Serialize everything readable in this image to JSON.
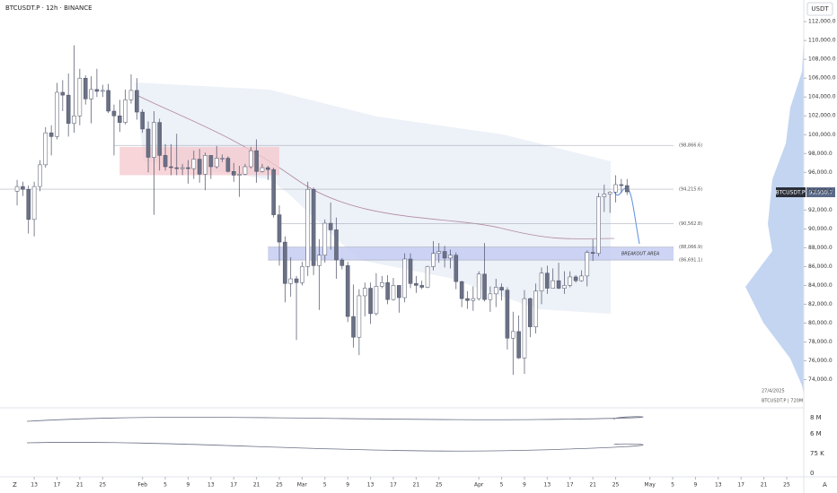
{
  "header": {
    "symbol_line": "BTCUSDT.P · 12h · BINANCE",
    "currency": "USDT",
    "date_stamp": "27/4/2025",
    "symbol_tag": "BTCUSDT.P | 720M",
    "price_tag_symbol": "BTCUSDT.P",
    "price_tag_value": "93,930.7",
    "left_corner": "Z",
    "right_corner": "A"
  },
  "indicator_labels": [
    "8 M",
    "6 M",
    "75 K",
    "0"
  ],
  "chart_data": {
    "type": "candlestick",
    "annotation": "BREAKOUT AREA",
    "up_color": "#ffffff",
    "down_color": "#6b7185",
    "edge_color": "#4b5066",
    "ylim": [
      71000,
      114300
    ],
    "xlim": [
      "2025-01-07",
      "2025-05-28"
    ],
    "yticks": [
      {
        "value": 74000,
        "label": "74,000.0"
      },
      {
        "value": 76000,
        "label": "76,000.0"
      },
      {
        "value": 78000,
        "label": "78,000.0"
      },
      {
        "value": 80000,
        "label": "80,000.0"
      },
      {
        "value": 82000,
        "label": "82,000.0"
      },
      {
        "value": 84000,
        "label": "84,000.0"
      },
      {
        "value": 86000,
        "label": "86,000.0"
      },
      {
        "value": 88000,
        "label": "88,000.0"
      },
      {
        "value": 90000,
        "label": "90,000.0"
      },
      {
        "value": 92000,
        "label": "92,000.0"
      },
      {
        "value": 94000,
        "label": "94,000.0"
      },
      {
        "value": 96000,
        "label": "96,000.0"
      },
      {
        "value": 98000,
        "label": "98,000.0"
      },
      {
        "value": 100000,
        "label": "100,000.0"
      },
      {
        "value": 102000,
        "label": "102,000.0"
      },
      {
        "value": 104000,
        "label": "104,000.0"
      },
      {
        "value": 106000,
        "label": "106,000.0"
      },
      {
        "value": 108000,
        "label": "108,000.0"
      },
      {
        "value": 110000,
        "label": "110,000.0"
      },
      {
        "value": 112000,
        "label": "112,000.0"
      }
    ],
    "xticks": [
      {
        "value": "2025-01-13",
        "label": "13"
      },
      {
        "value": "2025-01-17",
        "label": "17"
      },
      {
        "value": "2025-01-21",
        "label": "21"
      },
      {
        "value": "2025-01-25",
        "label": "25"
      },
      {
        "value": "2025-02-01",
        "label": "Feb"
      },
      {
        "value": "2025-02-05",
        "label": "5"
      },
      {
        "value": "2025-02-09",
        "label": "9"
      },
      {
        "value": "2025-02-13",
        "label": "13"
      },
      {
        "value": "2025-02-17",
        "label": "17"
      },
      {
        "value": "2025-02-21",
        "label": "21"
      },
      {
        "value": "2025-02-25",
        "label": "25"
      },
      {
        "value": "2025-03-01",
        "label": "Mar"
      },
      {
        "value": "2025-03-05",
        "label": "5"
      },
      {
        "value": "2025-03-09",
        "label": "9"
      },
      {
        "value": "2025-03-13",
        "label": "13"
      },
      {
        "value": "2025-03-17",
        "label": "17"
      },
      {
        "value": "2025-03-21",
        "label": "21"
      },
      {
        "value": "2025-03-25",
        "label": "25"
      },
      {
        "value": "2025-04-01",
        "label": "Apr"
      },
      {
        "value": "2025-04-05",
        "label": "5"
      },
      {
        "value": "2025-04-09",
        "label": "9"
      },
      {
        "value": "2025-04-13",
        "label": "13"
      },
      {
        "value": "2025-04-17",
        "label": "17"
      },
      {
        "value": "2025-04-21",
        "label": "21"
      },
      {
        "value": "2025-04-25",
        "label": "25"
      },
      {
        "value": "2025-05-01",
        "label": "May"
      },
      {
        "value": "2025-05-05",
        "label": "5"
      },
      {
        "value": "2025-05-09",
        "label": "9"
      },
      {
        "value": "2025-05-13",
        "label": "13"
      },
      {
        "value": "2025-05-17",
        "label": "17"
      },
      {
        "value": "2025-05-21",
        "label": "21"
      },
      {
        "value": "2025-05-25",
        "label": "25"
      }
    ],
    "levels": [
      {
        "value": 98866.6,
        "label": "(98,866.6)"
      },
      {
        "value": 94215.6,
        "label": "(94,215.6)"
      },
      {
        "value": 90562.8,
        "label": "(90,562.8)"
      },
      {
        "value": 88066.9,
        "label": "(88,066.9)"
      },
      {
        "value": 86691.1,
        "label": "(86,691.1)"
      }
    ],
    "x": [
      "2025-01-10",
      "2025-01-11",
      "2025-01-12",
      "2025-01-13",
      "2025-01-14",
      "2025-01-15",
      "2025-01-16",
      "2025-01-17",
      "2025-01-18",
      "2025-01-19",
      "2025-01-20",
      "2025-01-21",
      "2025-01-22",
      "2025-01-23",
      "2025-01-24",
      "2025-01-25",
      "2025-01-26",
      "2025-01-27",
      "2025-01-28",
      "2025-01-29",
      "2025-01-30",
      "2025-01-31",
      "2025-02-01",
      "2025-02-02",
      "2025-02-03",
      "2025-02-04",
      "2025-02-05",
      "2025-02-06",
      "2025-02-07",
      "2025-02-08",
      "2025-02-09",
      "2025-02-10",
      "2025-02-11",
      "2025-02-12",
      "2025-02-13",
      "2025-02-14",
      "2025-02-15",
      "2025-02-16",
      "2025-02-17",
      "2025-02-18",
      "2025-02-19",
      "2025-02-20",
      "2025-02-21",
      "2025-02-22",
      "2025-02-23",
      "2025-02-24",
      "2025-02-25",
      "2025-02-26",
      "2025-02-27",
      "2025-02-28",
      "2025-03-01",
      "2025-03-02",
      "2025-03-03",
      "2025-03-04",
      "2025-03-05",
      "2025-03-06",
      "2025-03-07",
      "2025-03-08",
      "2025-03-09",
      "2025-03-10",
      "2025-03-11",
      "2025-03-12",
      "2025-03-13",
      "2025-03-14",
      "2025-03-15",
      "2025-03-16",
      "2025-03-17",
      "2025-03-18",
      "2025-03-19",
      "2025-03-20",
      "2025-03-21",
      "2025-03-22",
      "2025-03-23",
      "2025-03-24",
      "2025-03-25",
      "2025-03-26",
      "2025-03-27",
      "2025-03-28",
      "2025-03-29",
      "2025-03-30",
      "2025-03-31",
      "2025-04-01",
      "2025-04-02",
      "2025-04-03",
      "2025-04-04",
      "2025-04-05",
      "2025-04-06",
      "2025-04-07",
      "2025-04-08",
      "2025-04-09",
      "2025-04-10",
      "2025-04-11",
      "2025-04-12",
      "2025-04-13",
      "2025-04-14",
      "2025-04-15",
      "2025-04-16",
      "2025-04-17",
      "2025-04-18",
      "2025-04-19",
      "2025-04-20",
      "2025-04-21",
      "2025-04-22",
      "2025-04-23",
      "2025-04-24",
      "2025-04-25",
      "2025-04-26",
      "2025-04-27"
    ],
    "open": [
      94000,
      94500,
      94200,
      91000,
      94500,
      96800,
      100200,
      99800,
      104500,
      104200,
      101200,
      102000,
      106000,
      103800,
      104800,
      104600,
      104700,
      102500,
      102000,
      101300,
      103700,
      104700,
      102400,
      100600,
      97600,
      101300,
      97800,
      96600,
      96500,
      96400,
      96500,
      96400,
      97400,
      95800,
      97800,
      96600,
      97500,
      97500,
      96100,
      95700,
      95800,
      96600,
      98300,
      96100,
      96500,
      96300,
      91500,
      88600,
      84200,
      84700,
      84300,
      86000,
      94200,
      86100,
      87200,
      90600,
      89900,
      86700,
      86100,
      80700,
      78500,
      82900,
      83700,
      81000,
      83900,
      84300,
      82500,
      84000,
      82700,
      86800,
      84200,
      84000,
      83800,
      86000,
      87400,
      87600,
      86900,
      87200,
      84400,
      82600,
      82400,
      82600,
      85200,
      82500,
      83100,
      83800,
      83500,
      78400,
      79100,
      76300,
      82600,
      79600,
      83400,
      85300,
      83700,
      84500,
      83700,
      84000,
      84900,
      84500,
      85000,
      87500,
      87400,
      93400,
      93700,
      93900,
      94700,
      94600
    ],
    "high": [
      95200,
      95000,
      94600,
      95000,
      97300,
      100800,
      101000,
      105500,
      105800,
      106500,
      109500,
      107000,
      106300,
      106200,
      107000,
      105300,
      105400,
      103200,
      103700,
      104800,
      106400,
      106000,
      102700,
      101400,
      102500,
      101700,
      99000,
      99000,
      100100,
      96900,
      97300,
      98300,
      98500,
      98100,
      97800,
      98800,
      97900,
      97700,
      97000,
      96700,
      96900,
      98700,
      99500,
      96900,
      96700,
      96500,
      92500,
      89200,
      87000,
      85000,
      86500,
      95000,
      94400,
      88900,
      91000,
      92800,
      91200,
      86900,
      86500,
      84100,
      83600,
      84300,
      84300,
      85300,
      85000,
      85100,
      84800,
      84000,
      87400,
      87400,
      85000,
      84500,
      86100,
      88700,
      88500,
      88200,
      87800,
      87500,
      84500,
      83400,
      83900,
      85500,
      88500,
      83900,
      84700,
      84200,
      83800,
      81200,
      80800,
      83500,
      82700,
      84200,
      85900,
      86100,
      85800,
      86400,
      85500,
      85500,
      85100,
      85600,
      87700,
      88900,
      93800,
      94700,
      94000,
      95700,
      95300,
      95300
    ],
    "low": [
      92500,
      93500,
      89500,
      89200,
      94000,
      96500,
      97800,
      99500,
      102500,
      99800,
      100200,
      101000,
      103200,
      101200,
      104000,
      104000,
      102300,
      97800,
      100300,
      101100,
      103300,
      101600,
      100200,
      96000,
      91500,
      96200,
      96200,
      95700,
      95700,
      95700,
      94800,
      95300,
      94900,
      94100,
      95300,
      96400,
      97100,
      96000,
      95000,
      93400,
      95700,
      96400,
      94900,
      96000,
      95200,
      91200,
      86100,
      82200,
      82800,
      78200,
      84000,
      85000,
      85100,
      81400,
      86400,
      87800,
      84700,
      85700,
      80100,
      77400,
      76600,
      80700,
      79900,
      80800,
      83700,
      82000,
      82400,
      81100,
      82200,
      83700,
      83200,
      83600,
      83700,
      85600,
      86400,
      85900,
      85800,
      83600,
      81700,
      81500,
      81300,
      82400,
      82300,
      81200,
      81700,
      82400,
      77200,
      74500,
      76200,
      74600,
      78500,
      78900,
      82000,
      83100,
      83700,
      83600,
      83100,
      83800,
      84300,
      84400,
      83900,
      86600,
      87100,
      91800,
      91700,
      92800,
      93800,
      93600
    ],
    "close": [
      94500,
      94200,
      91000,
      94500,
      96800,
      100200,
      99800,
      104500,
      104200,
      101200,
      102000,
      106000,
      103800,
      104800,
      104600,
      104700,
      102500,
      102000,
      101300,
      103700,
      104700,
      102400,
      100600,
      97600,
      101300,
      97800,
      96600,
      96500,
      96400,
      96500,
      96400,
      97400,
      95800,
      97800,
      96600,
      97500,
      97500,
      96100,
      95700,
      95800,
      96600,
      98300,
      96100,
      96500,
      96300,
      91500,
      88600,
      84200,
      84700,
      84300,
      86000,
      94200,
      86100,
      87200,
      90600,
      89900,
      86700,
      86100,
      80700,
      78500,
      82900,
      83700,
      81000,
      83900,
      84300,
      82500,
      84000,
      82700,
      86800,
      84200,
      84000,
      83800,
      86000,
      87400,
      87600,
      86900,
      87200,
      84400,
      82600,
      82400,
      82600,
      85200,
      82500,
      83100,
      83800,
      83500,
      78400,
      79100,
      76300,
      82600,
      79600,
      83400,
      85300,
      83700,
      84500,
      83700,
      84000,
      84900,
      84500,
      85000,
      87500,
      87400,
      93400,
      93700,
      93900,
      94700,
      94600,
      93930.7
    ]
  }
}
